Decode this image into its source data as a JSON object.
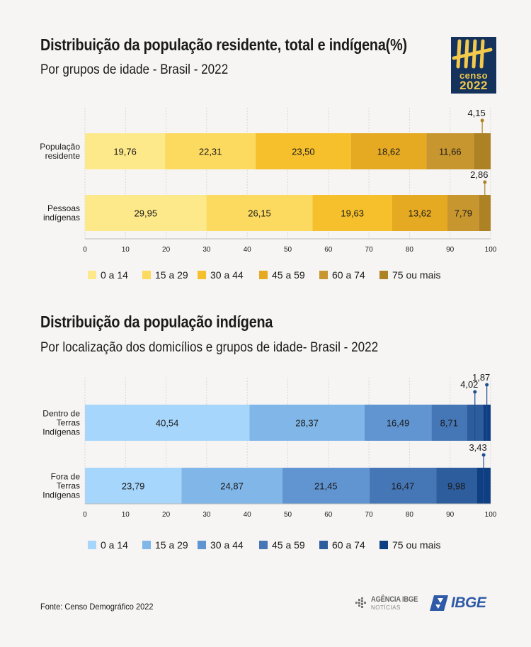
{
  "header": {
    "title1": "Distribuição da população residente, total e indígena(%)",
    "subtitle1": "Por grupos de idade - Brasil - 2022",
    "title2": "Distribuição da população indígena",
    "subtitle2": "Por localização dos domicílios e grupos de idade- Brasil - 2022"
  },
  "logo": {
    "word": "censo",
    "year": "2022"
  },
  "footer": {
    "source": "Fonte: Censo Demográfico 2022",
    "agencia_main": "AGÊNCIA IBGE",
    "agencia_sub": "NOTÍCIAS",
    "ibge": "IBGE"
  },
  "chart_data": [
    {
      "type": "bar",
      "orientation": "horizontal",
      "stacked": true,
      "categories": [
        [
          "População",
          "residente"
        ],
        [
          "Pessoas",
          "indígenas"
        ]
      ],
      "series": [
        {
          "name": "0 a 14",
          "values": [
            19.76,
            29.95
          ],
          "color": "#fde98a"
        },
        {
          "name": "15 a 29",
          "values": [
            22.31,
            26.15
          ],
          "color": "#fcd95f"
        },
        {
          "name": "30 a 44",
          "values": [
            23.5,
            19.63
          ],
          "color": "#f6c02c"
        },
        {
          "name": "45 a 59",
          "values": [
            18.62,
            13.62
          ],
          "color": "#e5a922"
        },
        {
          "name": "60 a 74",
          "values": [
            11.66,
            7.79
          ],
          "color": "#c8962f"
        },
        {
          "name": "75 ou mais",
          "values": [
            4.15,
            2.86
          ],
          "color": "#ad8225"
        }
      ],
      "value_labels": [
        [
          "19,76",
          "22,31",
          "23,50",
          "18,62",
          "11,66",
          "4,15"
        ],
        [
          "29,95",
          "26,15",
          "19,63",
          "13,62",
          "7,79",
          "2,86"
        ]
      ],
      "callouts": [
        [
          5
        ],
        [
          5
        ]
      ],
      "xlim": [
        0,
        100
      ],
      "xticks": [
        0,
        10,
        20,
        30,
        40,
        50,
        60,
        70,
        80,
        90,
        100
      ],
      "grid": true,
      "legend_position": "bottom",
      "label_color": "#1a1a1a",
      "callout_color": "#ad8225"
    },
    {
      "type": "bar",
      "orientation": "horizontal",
      "stacked": true,
      "categories": [
        [
          "Dentro de",
          "Terras",
          "Indígenas"
        ],
        [
          "Fora de",
          "Terras",
          "Indígenas"
        ]
      ],
      "series": [
        {
          "name": "0 a 14",
          "values": [
            40.54,
            23.79
          ],
          "color": "#a6d6fb"
        },
        {
          "name": "15 a 29",
          "values": [
            28.37,
            24.87
          ],
          "color": "#80b6e8"
        },
        {
          "name": "30 a 44",
          "values": [
            16.49,
            21.45
          ],
          "color": "#6195d1"
        },
        {
          "name": "45 a 59",
          "values": [
            8.71,
            16.47
          ],
          "color": "#4577b7"
        },
        {
          "name": "60 a 74",
          "values": [
            4.02,
            9.98
          ],
          "color": "#2d5d9c"
        },
        {
          "name": "75 ou mais",
          "values": [
            1.87,
            3.43
          ],
          "color": "#0d3f82"
        }
      ],
      "value_labels": [
        [
          "40,54",
          "28,37",
          "16,49",
          "8,71",
          "4,02",
          "1,87"
        ],
        [
          "23,79",
          "24,87",
          "21,45",
          "16,47",
          "9,98",
          "3,43"
        ]
      ],
      "callouts": [
        [
          4,
          5
        ],
        [
          5
        ]
      ],
      "xlim": [
        0,
        100
      ],
      "xticks": [
        0,
        10,
        20,
        30,
        40,
        50,
        60,
        70,
        80,
        90,
        100
      ],
      "grid": true,
      "legend_position": "bottom",
      "label_color": "#1a1a1a",
      "callout_color": "#1f4f8f"
    }
  ]
}
